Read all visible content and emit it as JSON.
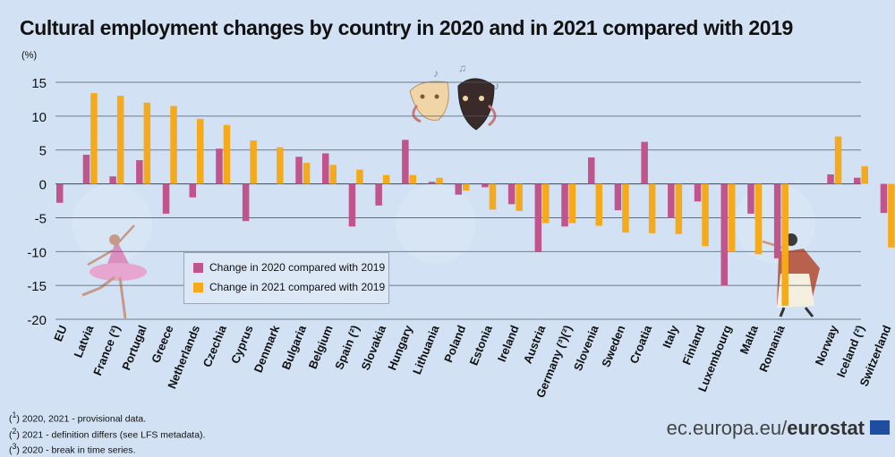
{
  "title": "Cultural employment changes by country in 2020 and in 2021 compared with 2019",
  "unit": "(%)",
  "footnotes": [
    {
      "mark": "1",
      "text": "2020, 2021 - provisional data."
    },
    {
      "mark": "2",
      "text": "2021 - definition differs (see LFS metadata)."
    },
    {
      "mark": "3",
      "text": "2020 - break in time series."
    }
  ],
  "source": {
    "domain": "ec.europa.eu/",
    "brand": "eurostat"
  },
  "colors": {
    "s2020": "#c0548c",
    "s2021": "#f5aa1c",
    "grid": "#4d5b6b",
    "background": "#d2e2f4"
  },
  "chart_data": {
    "type": "bar",
    "title": "Cultural employment changes by country in 2020 and in 2021 compared with 2019",
    "ylabel": "(%)",
    "ylim": [
      -20,
      15
    ],
    "yticks": [
      15,
      10,
      5,
      0,
      -5,
      -10,
      -15,
      -20
    ],
    "grid": true,
    "legend_position": "lower-left",
    "categories": [
      "EU",
      "Latvia",
      "France (²)",
      "Portugal",
      "Greece",
      "Netherlands",
      "Czechia",
      "Cyprus",
      "Denmark",
      "Bulgaria",
      "Belgium",
      "Spain (²)",
      "Slovakia",
      "Hungary",
      "Lithuania",
      "Poland",
      "Estonia",
      "Ireland",
      "Austria",
      "Germany (³)(²)",
      "Slovenia",
      "Sweden",
      "Croatia",
      "Italy",
      "Finland",
      "Luxembourg",
      "Malta",
      "Romania",
      "",
      "Norway",
      "Iceland (²)",
      "Switzerland"
    ],
    "series": [
      {
        "name": "Change in 2020 compared with 2019",
        "color": "#c0548c",
        "values": [
          -2.8,
          4.3,
          1.1,
          3.5,
          -4.4,
          -2.0,
          5.2,
          -5.5,
          null,
          4.0,
          4.5,
          -6.3,
          -3.2,
          6.5,
          0.3,
          -1.6,
          -0.5,
          -3.0,
          -10.1,
          -6.3,
          3.9,
          -3.9,
          6.2,
          -5.0,
          -2.6,
          -15.0,
          -4.4,
          -11.0,
          null,
          1.4,
          0.9,
          -4.3
        ]
      },
      {
        "name": "Change in 2021 compared with 2019",
        "color": "#f5aa1c",
        "values": [
          null,
          13.4,
          13.0,
          12.0,
          11.5,
          9.6,
          8.7,
          6.4,
          5.4,
          3.1,
          2.8,
          2.1,
          1.3,
          1.3,
          0.9,
          -1.0,
          -3.8,
          -4.0,
          -5.8,
          -5.8,
          -6.2,
          -7.2,
          -7.3,
          -7.4,
          -9.2,
          -10.0,
          -10.4,
          -18.0,
          null,
          7.0,
          2.6,
          -9.4
        ]
      }
    ]
  }
}
